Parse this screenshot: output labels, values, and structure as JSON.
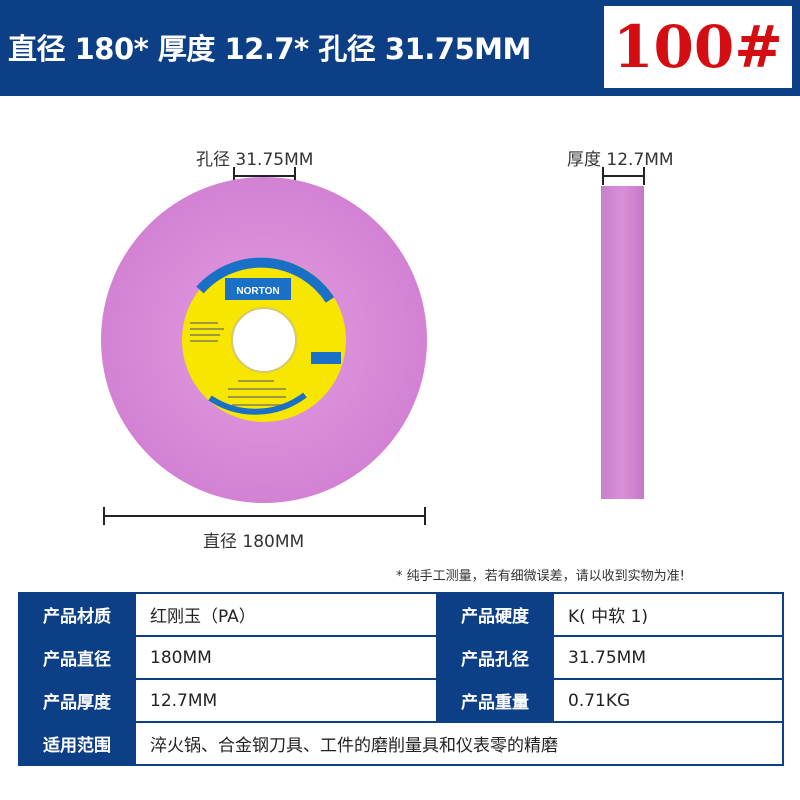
{
  "header": {
    "title": "直径 180* 厚度 12.7* 孔径 31.75MM",
    "grit": "100#"
  },
  "dimensions": {
    "bore": "孔径 31.75MM",
    "thickness": "厚度 12.7MM",
    "diameter": "直径 180MM"
  },
  "wheel_label": {
    "brand": "NORTON"
  },
  "note": "* 纯手工测量，若有细微误差，请以收到实物为准!",
  "specs": {
    "material_key": "产品材质",
    "material_val": "红刚玉（PA）",
    "hardness_key": "产品硬度",
    "hardness_val": "K( 中软 1)",
    "diameter_key": "产品直径",
    "diameter_val": "180MM",
    "bore_key": "产品孔径",
    "bore_val": "31.75MM",
    "thickness_key": "产品厚度",
    "thickness_val": "12.7MM",
    "weight_key": "产品重量",
    "weight_val": "0.71KG",
    "usage_key": "适用范围",
    "usage_val": "淬火锅、合金钢刀具、工件的磨削量具和仪表零的精磨"
  },
  "colors": {
    "header_bg": "#0d3f86",
    "grit_red": "#d40d12",
    "wheel_pink": "#d98ad8",
    "label_yellow": "#f6e600",
    "label_blue": "#1a70c6"
  },
  "icons": [
    "bore-dimension-icon",
    "thickness-dimension-icon",
    "diameter-dimension-icon"
  ]
}
